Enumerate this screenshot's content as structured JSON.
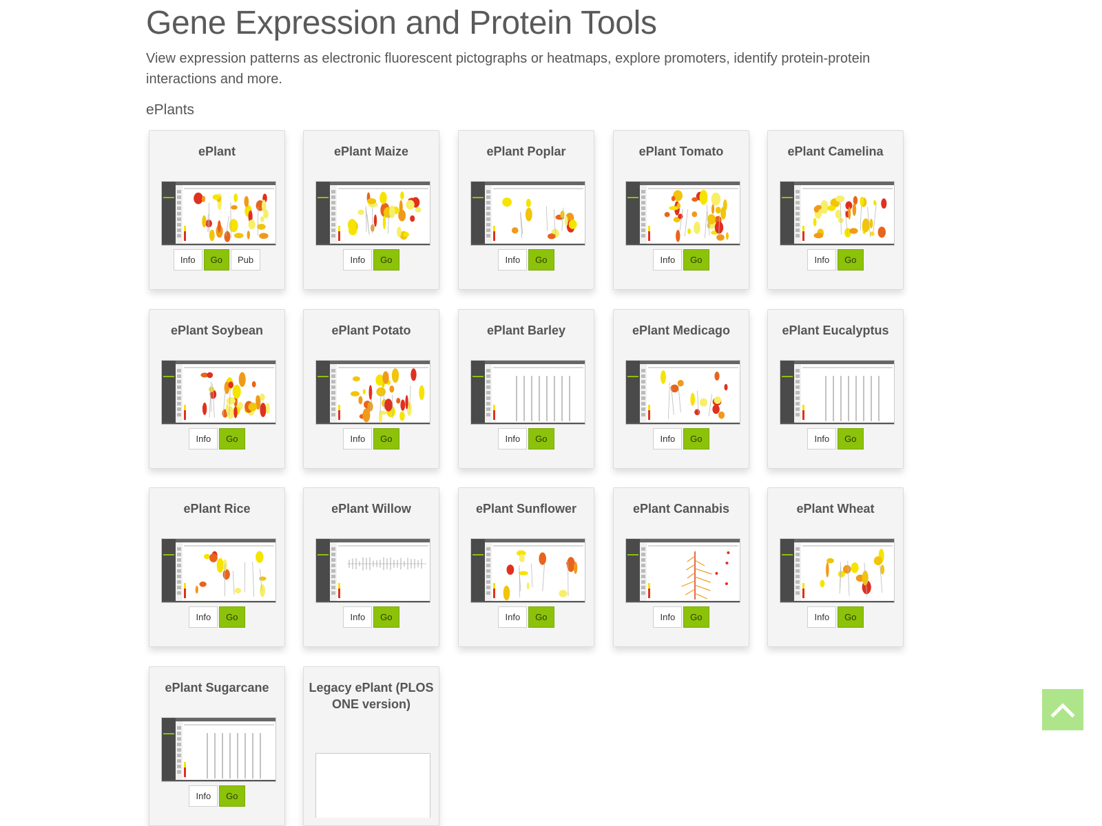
{
  "header": {
    "title": "Gene Expression and Protein Tools",
    "description": "View expression patterns as electronic fluorescent pictographs or heatmaps, explore promoters, identify protein-protein interactions and more."
  },
  "section": {
    "title": "ePlants"
  },
  "labels": {
    "info": "Info",
    "go": "Go",
    "pub": "Pub"
  },
  "colors": {
    "go_button": "#8cc20a",
    "card_bg": "#f4f4f4",
    "thumb_sidebar": "#4a4a4a",
    "expression_yellow": "#f5e400",
    "expression_red": "#e0301e",
    "back_to_top": "#aee58a"
  },
  "cards": [
    {
      "title": "ePlant",
      "has_pub": true,
      "thumb": "plants"
    },
    {
      "title": "ePlant Maize",
      "thumb": "plants"
    },
    {
      "title": "ePlant Poplar",
      "thumb": "sparse"
    },
    {
      "title": "ePlant Tomato",
      "thumb": "plants"
    },
    {
      "title": "ePlant Camelina",
      "thumb": "plants"
    },
    {
      "title": "ePlant Soybean",
      "thumb": "plants"
    },
    {
      "title": "ePlant Potato",
      "thumb": "plants"
    },
    {
      "title": "ePlant Barley",
      "thumb": "lines"
    },
    {
      "title": "ePlant Medicago",
      "thumb": "sparse"
    },
    {
      "title": "ePlant Eucalyptus",
      "thumb": "lines"
    },
    {
      "title": "ePlant Rice",
      "thumb": "sparse"
    },
    {
      "title": "ePlant Willow",
      "thumb": "ticks"
    },
    {
      "title": "ePlant Sunflower",
      "thumb": "sparse"
    },
    {
      "title": "ePlant Cannabis",
      "thumb": "tree"
    },
    {
      "title": "ePlant Wheat",
      "thumb": "sparse"
    },
    {
      "title": "ePlant Sugarcane",
      "thumb": "lines"
    },
    {
      "title": "Legacy ePlant (PLOS ONE version)",
      "thumb": "none"
    }
  ],
  "back_to_top": {
    "icon": "chevron-up-icon"
  }
}
